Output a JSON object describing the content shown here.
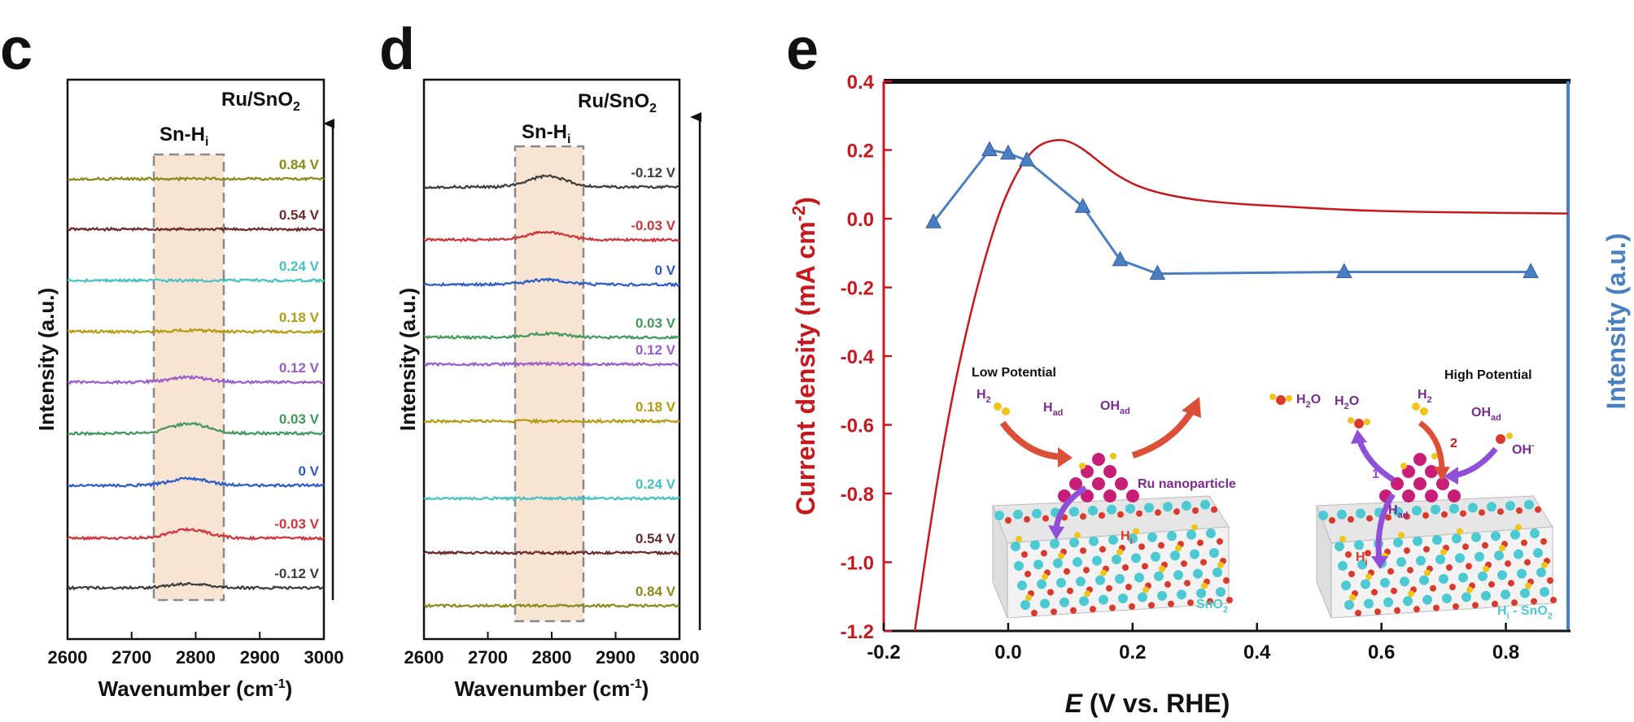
{
  "colors": {
    "current": "#c8181e",
    "intensity": "#4a7fc1",
    "band_fill": "#f8e4d2",
    "band_edge": "#8a8a8a",
    "tin": "#4cc9d2",
    "oxygen": "#d93a2c",
    "hydrogen": "#f0c419",
    "ruthenium": "#c81e78",
    "arrow_purple": "#8f4fd6",
    "arrow_red": "#dd5038"
  },
  "panel_c": {
    "letter": "c",
    "sample": "Ru/SnO",
    "sample_sub": "2",
    "band": "Sn-H",
    "band_sub": "i",
    "ylabel": "Intensity (a.u.)",
    "xlabel": "Wavenumber (cm",
    "xlabel_sup": "-1",
    "xlabel_close": ")"
  },
  "panel_d": {
    "letter": "d",
    "sample": "Ru/SnO",
    "sample_sub": "2",
    "band": "Sn-H",
    "band_sub": "i",
    "ylabel": "Intensity (a.u.)",
    "xlabel": "Wavenumber (cm",
    "xlabel_sup": "-1",
    "xlabel_close": ")"
  },
  "panel_e": {
    "letter": "e",
    "ylabel_left": "Current density (mA cm",
    "ylabel_left_sup": "-2",
    "ylabel_left_close": ")",
    "ylabel_right": "Intensity (a.u.)",
    "xlabel_italic": "E",
    "xlabel_rest": " (V vs. RHE)"
  },
  "inset": {
    "low_title": "Low Potential",
    "high_title": "High Potential",
    "h2": "H",
    "h2_sub": "2",
    "had": "H",
    "had_sub": "ad",
    "ohad": "OH",
    "ohad_sub": "ad",
    "h2o": "H",
    "h2o_sub": "2",
    "h2o_end": "O",
    "ru": "Ru nanoparticle",
    "hi": "H",
    "hi_sub": "i",
    "sno2": "SnO",
    "sno2_sub": "2",
    "hisno2": "H",
    "hisno2_sub": "i",
    "hisno2_rest": " - SnO",
    "hisno2_sub2": "2",
    "oh": "OH",
    "oh_sup": "-",
    "step1": "1",
    "step2": "2"
  },
  "chart_data": [
    {
      "type": "line",
      "panel": "c",
      "xlabel": "Wavenumber (cm-1)",
      "ylabel": "Intensity (a.u.)",
      "xlim": [
        2600,
        3000
      ],
      "xticks": [
        2600,
        2700,
        2800,
        2900,
        3000
      ],
      "band_region": [
        2735,
        2845
      ],
      "annotation": "Sn-Hi",
      "sample": "Ru/SnO2",
      "series": [
        {
          "name": "0.84 V",
          "color": "#8a8a1a",
          "peak": 0.0
        },
        {
          "name": "0.54 V",
          "color": "#6b2a2a",
          "peak": 0.0
        },
        {
          "name": "0.24 V",
          "color": "#45c2c2",
          "peak": 0.0
        },
        {
          "name": "0.18 V",
          "color": "#b59a10",
          "peak": 0.3
        },
        {
          "name": "0.12 V",
          "color": "#9a5ccc",
          "peak": 1.0
        },
        {
          "name": "0.03 V",
          "color": "#3f9a5a",
          "peak": 2.0
        },
        {
          "name": "0 V",
          "color": "#2a5cc8",
          "peak": 1.4
        },
        {
          "name": "-0.03 V",
          "color": "#d0343a",
          "peak": 1.8
        },
        {
          "name": "-0.12 V",
          "color": "#3c3c3c",
          "peak": 0.8
        }
      ]
    },
    {
      "type": "line",
      "panel": "d",
      "xlabel": "Wavenumber (cm-1)",
      "ylabel": "Intensity (a.u.)",
      "xlim": [
        2600,
        3000
      ],
      "xticks": [
        2600,
        2700,
        2800,
        2900,
        3000
      ],
      "band_region": [
        2740,
        2845
      ],
      "annotation": "Sn-Hi",
      "sample": "Ru/SnO2",
      "series": [
        {
          "name": "-0.12 V",
          "color": "#3c3c3c",
          "peak": 2.2
        },
        {
          "name": "-0.03 V",
          "color": "#d0343a",
          "peak": 1.6
        },
        {
          "name": "0 V",
          "color": "#2a5cc8",
          "peak": 1.0
        },
        {
          "name": "0.03 V",
          "color": "#3f9a5a",
          "peak": 0.8
        },
        {
          "name": "0.12 V",
          "color": "#9a5ccc",
          "peak": 0.1
        },
        {
          "name": "0.18 V",
          "color": "#b59a10",
          "peak": 0.0
        },
        {
          "name": "0.24 V",
          "color": "#45c2c2",
          "peak": 0.0
        },
        {
          "name": "0.54 V",
          "color": "#6b2a2a",
          "peak": 0.0
        },
        {
          "name": "0.84 V",
          "color": "#8a8a1a",
          "peak": 0.0
        }
      ]
    },
    {
      "type": "line",
      "panel": "e",
      "xlabel": "E (V vs. RHE)",
      "ylabel": "Current density (mA cm-2)",
      "ylabel_right": "Intensity (a.u.)",
      "xlim": [
        -0.2,
        0.9
      ],
      "ylim": [
        -1.2,
        0.4
      ],
      "xticks": [
        -0.2,
        0.0,
        0.2,
        0.4,
        0.6,
        0.8
      ],
      "yticks": [
        -1.2,
        -1.0,
        -0.8,
        -0.6,
        -0.4,
        -0.2,
        0.0,
        0.2,
        0.4
      ],
      "series": [
        {
          "name": "Current density",
          "color": "#c8181e",
          "x": [
            -0.15,
            -0.13,
            -0.11,
            -0.09,
            -0.07,
            -0.05,
            -0.03,
            -0.01,
            0.01,
            0.03,
            0.05,
            0.07,
            0.09,
            0.11,
            0.13,
            0.15,
            0.18,
            0.22,
            0.28,
            0.35,
            0.45,
            0.55,
            0.65,
            0.75,
            0.85,
            0.9
          ],
          "y": [
            -1.2,
            -0.95,
            -0.72,
            -0.52,
            -0.35,
            -0.2,
            -0.07,
            0.04,
            0.12,
            0.18,
            0.215,
            0.228,
            0.23,
            0.215,
            0.19,
            0.16,
            0.12,
            0.085,
            0.06,
            0.045,
            0.035,
            0.025,
            0.02,
            0.018,
            0.016,
            0.015
          ]
        },
        {
          "name": "Sn-Hi intensity",
          "color": "#4a7fc1",
          "marker": "triangle",
          "x": [
            -0.12,
            -0.03,
            0.0,
            0.03,
            0.12,
            0.18,
            0.24,
            0.54,
            0.84
          ],
          "y": [
            -0.01,
            0.2,
            0.19,
            0.17,
            0.035,
            -0.12,
            -0.16,
            -0.155,
            -0.155
          ]
        }
      ]
    }
  ]
}
